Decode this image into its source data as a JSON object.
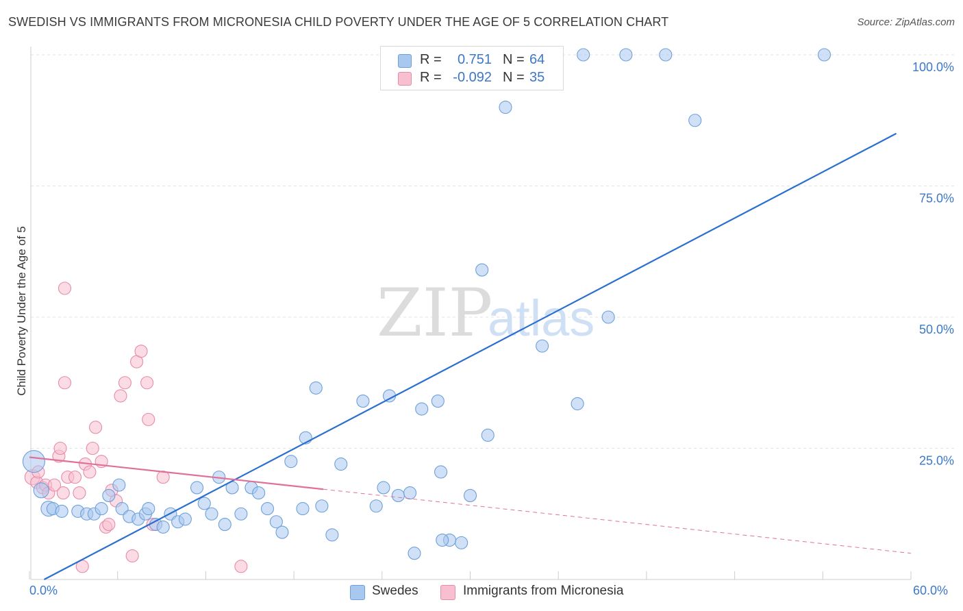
{
  "title": "SWEDISH VS IMMIGRANTS FROM MICRONESIA CHILD POVERTY UNDER THE AGE OF 5 CORRELATION CHART",
  "source": "Source: ZipAtlas.com",
  "watermark": {
    "zip": "ZIP",
    "atlas": "atlas"
  },
  "legend": {
    "rows": [
      {
        "r_label": "R =",
        "r_value": "0.751",
        "n_label": "N =",
        "n_value": "64",
        "color": "#a9c8f0",
        "border": "#6d9fd8"
      },
      {
        "r_label": "R =",
        "r_value": "-0.092",
        "n_label": "N =",
        "n_value": "35",
        "color": "#f7bfd0",
        "border": "#e88aa8"
      }
    ]
  },
  "bottom_legend": {
    "swedes": "Swedes",
    "micronesia": "Immigrants from Micronesia"
  },
  "x_ticks": {
    "left": "0.0%",
    "right": "60.0%"
  },
  "chart_data": {
    "type": "scatter",
    "title": "SWEDISH VS IMMIGRANTS FROM MICRONESIA CHILD POVERTY UNDER THE AGE OF 5 CORRELATION CHART",
    "xlabel": "",
    "ylabel": "Child Poverty Under the Age of 5",
    "xlim": [
      0,
      60
    ],
    "ylim": [
      0,
      100
    ],
    "y_ticks": [
      {
        "value": 25,
        "label": "25.0%"
      },
      {
        "value": 50,
        "label": "50.0%"
      },
      {
        "value": 75,
        "label": "75.0%"
      },
      {
        "value": 100,
        "label": "100.0%"
      }
    ],
    "grid": true,
    "series": [
      {
        "name": "Swedes",
        "color": "#a9c8f0",
        "stroke": "#6d9fd8",
        "trend_color": "#2a6fcf",
        "trend": {
          "x": [
            1,
            59
          ],
          "y": [
            0,
            85
          ]
        },
        "points": [
          [
            0.3,
            22.5,
            16
          ],
          [
            0.8,
            17,
            11
          ],
          [
            1.3,
            13.5,
            11
          ],
          [
            1.6,
            13.5,
            9
          ],
          [
            2.2,
            13,
            9
          ],
          [
            3.3,
            13,
            9
          ],
          [
            3.9,
            12.5,
            9
          ],
          [
            4.4,
            12.5,
            9
          ],
          [
            4.9,
            13.5,
            9
          ],
          [
            5.4,
            16,
            9
          ],
          [
            6.1,
            18,
            9
          ],
          [
            6.3,
            13.5,
            9
          ],
          [
            6.8,
            12,
            9
          ],
          [
            7.4,
            11.5,
            9
          ],
          [
            7.9,
            12.5,
            9
          ],
          [
            8.1,
            13.5,
            9
          ],
          [
            8.6,
            10.5,
            9
          ],
          [
            9.1,
            10,
            9
          ],
          [
            9.6,
            12.5,
            9
          ],
          [
            10.1,
            11,
            9
          ],
          [
            10.6,
            11.5,
            9
          ],
          [
            11.4,
            17.5,
            9
          ],
          [
            11.9,
            14.5,
            9
          ],
          [
            12.4,
            12.5,
            9
          ],
          [
            12.9,
            19.5,
            9
          ],
          [
            13.3,
            10.5,
            9
          ],
          [
            13.8,
            17.5,
            9
          ],
          [
            14.4,
            12.5,
            9
          ],
          [
            15.1,
            17.5,
            9
          ],
          [
            15.6,
            16.5,
            9
          ],
          [
            16.2,
            13.5,
            9
          ],
          [
            16.8,
            11,
            9
          ],
          [
            17.2,
            9,
            9
          ],
          [
            17.8,
            22.5,
            9
          ],
          [
            18.6,
            13.5,
            9
          ],
          [
            18.8,
            27,
            9
          ],
          [
            19.5,
            36.5,
            9
          ],
          [
            19.9,
            14,
            9
          ],
          [
            20.6,
            8.5,
            9
          ],
          [
            21.2,
            22,
            9
          ],
          [
            22.7,
            34,
            9
          ],
          [
            23.6,
            14,
            9
          ],
          [
            24.1,
            17.5,
            9
          ],
          [
            24.5,
            35,
            9
          ],
          [
            25.1,
            16,
            9
          ],
          [
            25.9,
            16.5,
            9
          ],
          [
            26.2,
            5,
            9
          ],
          [
            26.7,
            32.5,
            9
          ],
          [
            27.8,
            34,
            9
          ],
          [
            28.0,
            20.5,
            9
          ],
          [
            28.6,
            7.5,
            9
          ],
          [
            29.4,
            7,
            9
          ],
          [
            28.1,
            7.5,
            9
          ],
          [
            30.0,
            16,
            9
          ],
          [
            30.8,
            59,
            9
          ],
          [
            31.2,
            27.5,
            9
          ],
          [
            32.4,
            90,
            9
          ],
          [
            34.9,
            44.5,
            9
          ],
          [
            37.7,
            100,
            9
          ],
          [
            37.3,
            33.5,
            9
          ],
          [
            39.4,
            50,
            9
          ],
          [
            40.6,
            100,
            9
          ],
          [
            43.3,
            100,
            9
          ],
          [
            45.3,
            87.5,
            9
          ],
          [
            54.1,
            100,
            9
          ]
        ]
      },
      {
        "name": "Immigrants from Micronesia",
        "color": "#f7bfd0",
        "stroke": "#e88aa8",
        "trend_color": "#e0709a",
        "trend": {
          "x": [
            0,
            20
          ],
          "y": [
            23.3,
            17.2
          ]
        },
        "trend_ext": {
          "x": [
            20,
            60
          ],
          "y": [
            17.2,
            5
          ]
        },
        "points": [
          [
            0.2,
            19.5,
            11
          ],
          [
            0.5,
            18.5,
            9
          ],
          [
            0.6,
            20.5,
            9
          ],
          [
            0.9,
            17.5,
            9
          ],
          [
            1.1,
            18,
            9
          ],
          [
            1.3,
            16.5,
            9
          ],
          [
            1.7,
            18,
            9
          ],
          [
            2.0,
            23.5,
            9
          ],
          [
            2.1,
            25,
            9
          ],
          [
            2.3,
            16.5,
            9
          ],
          [
            2.6,
            19.5,
            9
          ],
          [
            2.4,
            37.5,
            9
          ],
          [
            2.4,
            55.5,
            9
          ],
          [
            3.1,
            19.5,
            9
          ],
          [
            3.4,
            16.5,
            9
          ],
          [
            3.6,
            2.5,
            9
          ],
          [
            3.8,
            22,
            9
          ],
          [
            4.1,
            20.5,
            9
          ],
          [
            4.3,
            25,
            9
          ],
          [
            4.5,
            29,
            9
          ],
          [
            4.9,
            22.5,
            9
          ],
          [
            5.2,
            10,
            9
          ],
          [
            5.4,
            10.5,
            9
          ],
          [
            5.6,
            17,
            9
          ],
          [
            5.9,
            15,
            9
          ],
          [
            6.2,
            35,
            9
          ],
          [
            6.5,
            37.5,
            9
          ],
          [
            7.0,
            4.5,
            9
          ],
          [
            7.3,
            41.5,
            9
          ],
          [
            7.6,
            43.5,
            9
          ],
          [
            8.0,
            37.5,
            9
          ],
          [
            8.1,
            30.5,
            9
          ],
          [
            8.4,
            10.5,
            9
          ],
          [
            9.1,
            19.5,
            9
          ],
          [
            14.4,
            2.5,
            9
          ]
        ]
      }
    ]
  }
}
